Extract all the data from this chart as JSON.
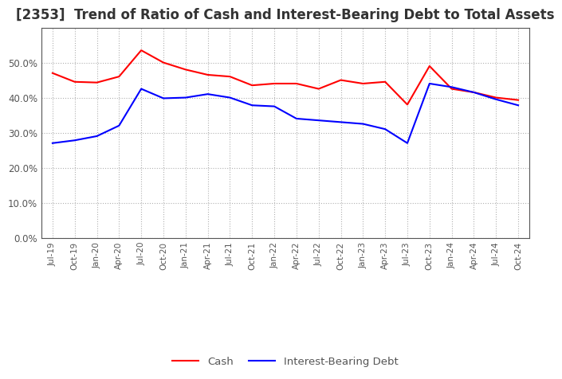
{
  "title": "[2353]  Trend of Ratio of Cash and Interest-Bearing Debt to Total Assets",
  "x_labels": [
    "Jul-19",
    "Oct-19",
    "Jan-20",
    "Apr-20",
    "Jul-20",
    "Oct-20",
    "Jan-21",
    "Apr-21",
    "Jul-21",
    "Oct-21",
    "Jan-22",
    "Apr-22",
    "Jul-22",
    "Oct-22",
    "Jan-23",
    "Apr-23",
    "Jul-23",
    "Oct-23",
    "Jan-24",
    "Apr-24",
    "Jul-24",
    "Oct-24"
  ],
  "cash": [
    0.47,
    0.445,
    0.443,
    0.46,
    0.535,
    0.5,
    0.48,
    0.465,
    0.46,
    0.435,
    0.44,
    0.44,
    0.425,
    0.45,
    0.44,
    0.445,
    0.38,
    0.49,
    0.425,
    0.415,
    0.4,
    0.393
  ],
  "ibd": [
    0.27,
    0.278,
    0.29,
    0.32,
    0.425,
    0.398,
    0.4,
    0.41,
    0.4,
    0.378,
    0.375,
    0.34,
    0.335,
    0.33,
    0.325,
    0.31,
    0.27,
    0.44,
    0.43,
    0.415,
    0.395,
    0.378
  ],
  "cash_color": "#ff0000",
  "ibd_color": "#0000ff",
  "ylim": [
    0.0,
    0.6
  ],
  "yticks": [
    0.0,
    0.1,
    0.2,
    0.3,
    0.4,
    0.5
  ],
  "background_color": "#ffffff",
  "grid_color": "#b0b0b0",
  "title_fontsize": 12,
  "title_color": "#333333",
  "tick_color": "#555555",
  "line_width": 1.5
}
